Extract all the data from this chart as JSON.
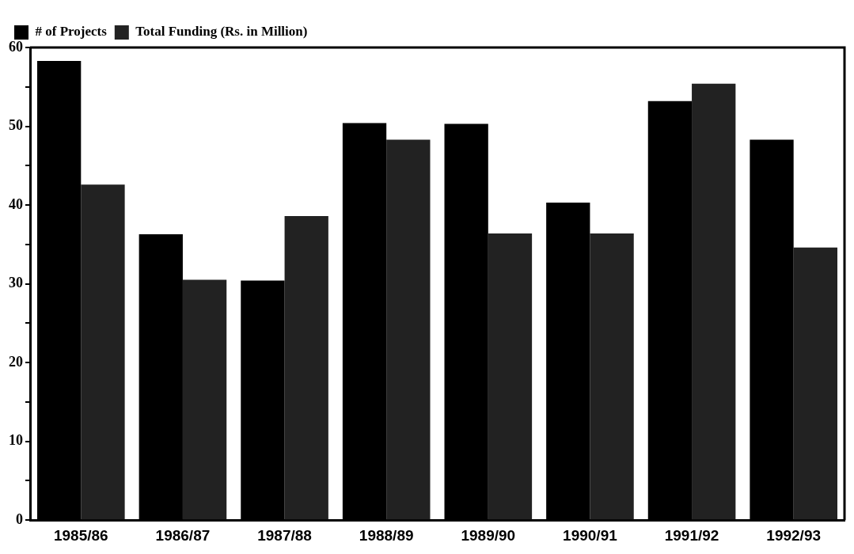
{
  "chart_data": {
    "type": "bar",
    "categories": [
      "1985/86",
      "1986/87",
      "1987/88",
      "1988/89",
      "1989/90",
      "1990/91",
      "1991/92",
      "1992/93"
    ],
    "series": [
      {
        "name": "# of Projects",
        "color": "#000000",
        "values": [
          58.3,
          36.3,
          30.4,
          50.4,
          50.3,
          40.3,
          53.2,
          48.3
        ]
      },
      {
        "name": "Total Funding (Rs. in Million)",
        "color": "#222222",
        "values": [
          42.6,
          30.5,
          38.6,
          48.3,
          36.4,
          36.4,
          55.4,
          34.6
        ]
      }
    ],
    "ylim": [
      0,
      60
    ],
    "yticks": [
      0,
      {
        "value": 5,
        "label": null
      },
      10,
      {
        "value": 15,
        "label": null
      },
      20,
      {
        "value": 25,
        "label": null
      },
      30,
      {
        "value": 35,
        "label": null
      },
      40,
      {
        "value": 45,
        "label": null
      },
      50,
      {
        "value": 55,
        "label": null
      },
      60
    ],
    "grid": false,
    "legend": "top"
  }
}
